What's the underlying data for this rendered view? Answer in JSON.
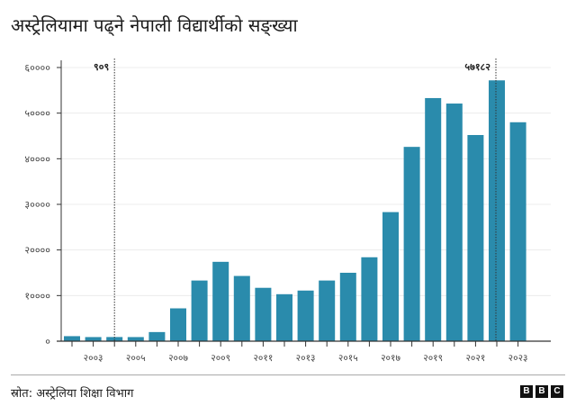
{
  "title": "अस्ट्रेलियामा पढ्ने नेपाली विद्यार्थीको सङ्ख्या",
  "source": "स्रोत: अस्ट्रेलिया शिक्षा विभाग",
  "logo": [
    "B",
    "B",
    "C"
  ],
  "chart_data": {
    "type": "bar",
    "title": "अस्ट्रेलियामा पढ्ने नेपाली विद्यार्थीको सङ्ख्या",
    "xlabel": "",
    "ylabel": "",
    "categories": [
      2002,
      2003,
      2004,
      2005,
      2006,
      2007,
      2008,
      2009,
      2010,
      2011,
      2012,
      2013,
      2014,
      2015,
      2016,
      2017,
      2018,
      2019,
      2020,
      2021,
      2022,
      2023
    ],
    "values": [
      1100,
      900,
      909,
      900,
      2000,
      7200,
      13300,
      17400,
      14300,
      11700,
      10300,
      11100,
      13300,
      15000,
      18400,
      28300,
      42600,
      53300,
      52100,
      45200,
      57182,
      48000
    ],
    "ylim": [
      0,
      60000
    ],
    "y_ticks": [
      0,
      10000,
      20000,
      30000,
      40000,
      50000,
      60000
    ],
    "y_tick_labels": [
      "०",
      "१००००",
      "२००००",
      "३००००",
      "४००००",
      "५००००",
      "६००००"
    ],
    "x_tick_labels": [
      {
        "year": 2003,
        "label": "२००३"
      },
      {
        "year": 2005,
        "label": "२००५"
      },
      {
        "year": 2007,
        "label": "२००७"
      },
      {
        "year": 2009,
        "label": "२००९"
      },
      {
        "year": 2011,
        "label": "२०११"
      },
      {
        "year": 2013,
        "label": "२०१३"
      },
      {
        "year": 2015,
        "label": "२०१५"
      },
      {
        "year": 2017,
        "label": "२०१७"
      },
      {
        "year": 2019,
        "label": "२०१९"
      },
      {
        "year": 2021,
        "label": "२०२१"
      },
      {
        "year": 2023,
        "label": "२०२३"
      }
    ],
    "annotations": [
      {
        "year": 2004,
        "label": "९०९"
      },
      {
        "year": 2022,
        "label": "५७१८२"
      }
    ],
    "grid": "horizontal",
    "bar_color": "#2a8bac"
  }
}
